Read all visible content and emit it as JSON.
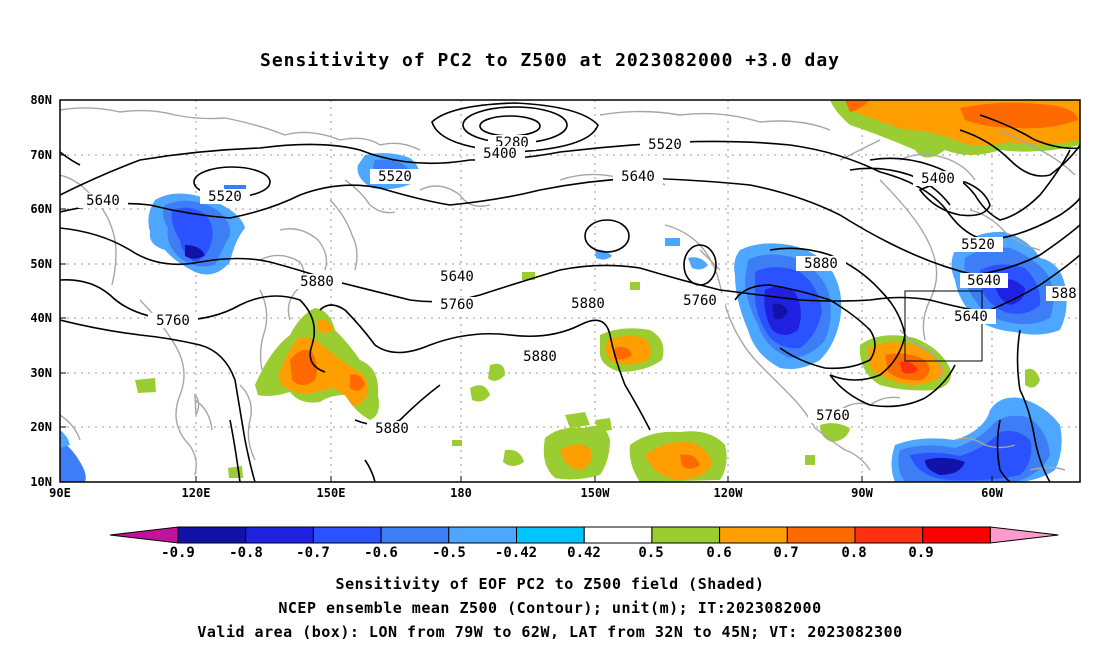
{
  "title": "Sensitivity of PC2 to Z500 at 2023082000 +3.0 day",
  "map": {
    "lat_ticks": [
      "80N",
      "70N",
      "60N",
      "50N",
      "40N",
      "30N",
      "20N",
      "10N"
    ],
    "lon_ticks": [
      "90E",
      "120E",
      "150E",
      "180",
      "150W",
      "120W",
      "90W",
      "60W"
    ],
    "contour_labels": [
      "5280",
      "5400",
      "5520",
      "5520",
      "5520",
      "5640",
      "5640",
      "5640",
      "5760",
      "5760",
      "5880",
      "5880",
      "5880",
      "5880",
      "5640",
      "5760",
      "5880",
      "5400",
      "5520",
      "5640",
      "5760",
      "588"
    ],
    "valid_box": {
      "lon_min": -79,
      "lon_max": -62,
      "lat_min": 32,
      "lat_max": 45
    }
  },
  "colorbar": {
    "labels": [
      "-0.9",
      "-0.8",
      "-0.7",
      "-0.6",
      "-0.5",
      "-0.42",
      "0.42",
      "0.5",
      "0.6",
      "0.7",
      "0.8",
      "0.9"
    ],
    "colors": [
      "#c0129a",
      "#1212a8",
      "#2020e0",
      "#2a52ff",
      "#3d7df5",
      "#4da6ff",
      "#00c5ff",
      "#ffffff",
      "#9acd32",
      "#ff9e00",
      "#ff6a00",
      "#ff3010",
      "#ff0000",
      "#ff9acc"
    ]
  },
  "captions": [
    "Sensitivity of EOF PC2 to Z500 field (Shaded)",
    "NCEP ensemble mean Z500 (Contour); unit(m); IT:2023082000",
    "Valid area (box): LON from 79W to 62W, LAT from 32N to 45N; VT: 2023082300"
  ]
}
